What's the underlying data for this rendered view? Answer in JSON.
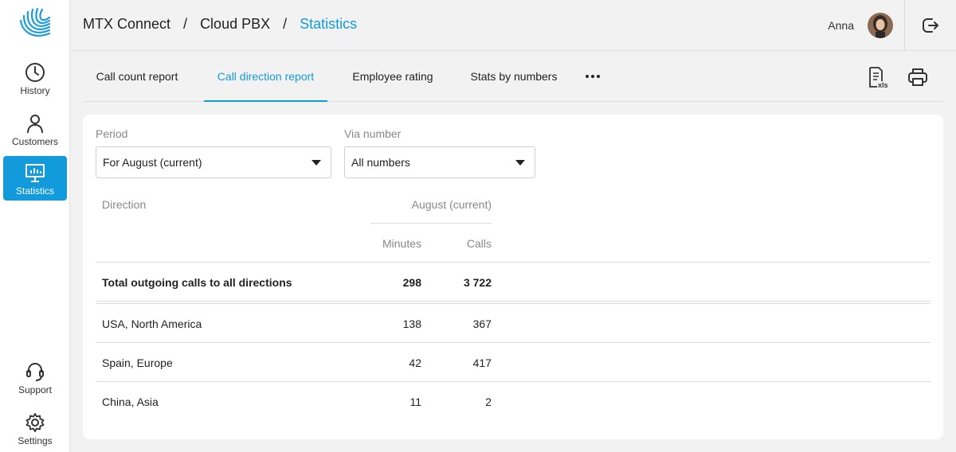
{
  "sidebar": {
    "items": [
      {
        "label": "History",
        "icon": "clock-icon"
      },
      {
        "label": "Customers",
        "icon": "person-icon"
      },
      {
        "label": "Statistics",
        "icon": "chart-monitor-icon"
      },
      {
        "label": "Support",
        "icon": "headset-icon"
      },
      {
        "label": "Settings",
        "icon": "gear-icon"
      }
    ]
  },
  "header": {
    "breadcrumb": [
      "MTX Connect",
      "Cloud PBX",
      "Statistics"
    ],
    "separator": "/",
    "user_name": "Anna"
  },
  "tabs": [
    {
      "label": "Call count report"
    },
    {
      "label": "Call direction report"
    },
    {
      "label": "Employee rating"
    },
    {
      "label": "Stats by numbers"
    }
  ],
  "filters": {
    "period": {
      "label": "Period",
      "value": "For August (current)"
    },
    "via_number": {
      "label": "Via number",
      "value": "All numbers"
    }
  },
  "table": {
    "col_direction": "Direction",
    "group_header": "August (current)",
    "col_minutes": "Minutes",
    "col_calls": "Calls",
    "total": {
      "direction": "Total outgoing calls to all directions",
      "minutes": "298",
      "calls": "3 722"
    },
    "rows": [
      {
        "direction": "USA, North America",
        "minutes": "138",
        "calls": "367"
      },
      {
        "direction": "Spain, Europe",
        "minutes": "42",
        "calls": "417"
      },
      {
        "direction": "China, Asia",
        "minutes": "11",
        "calls": "2"
      }
    ]
  },
  "colors": {
    "accent": "#119bdd",
    "text": "#222222",
    "muted": "#888888"
  }
}
